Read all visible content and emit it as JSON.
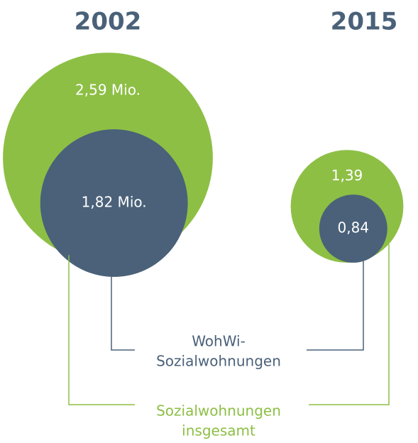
{
  "chart_data": {
    "type": "nested-circles",
    "categories": [
      "2002",
      "2015"
    ],
    "series": [
      {
        "name": [
          "Sozialwohnungen",
          "insgesamt"
        ],
        "color": "#8dbf45",
        "values": [
          2.59,
          1.39
        ],
        "value_labels": [
          "2,59 Mio.",
          "1,39"
        ]
      },
      {
        "name": [
          "WohWi-",
          "Sozialwohnungen"
        ],
        "color": "#4a6179",
        "values": [
          1.82,
          0.84
        ],
        "value_labels": [
          "1,82 Mio.",
          "0,84"
        ]
      }
    ]
  }
}
